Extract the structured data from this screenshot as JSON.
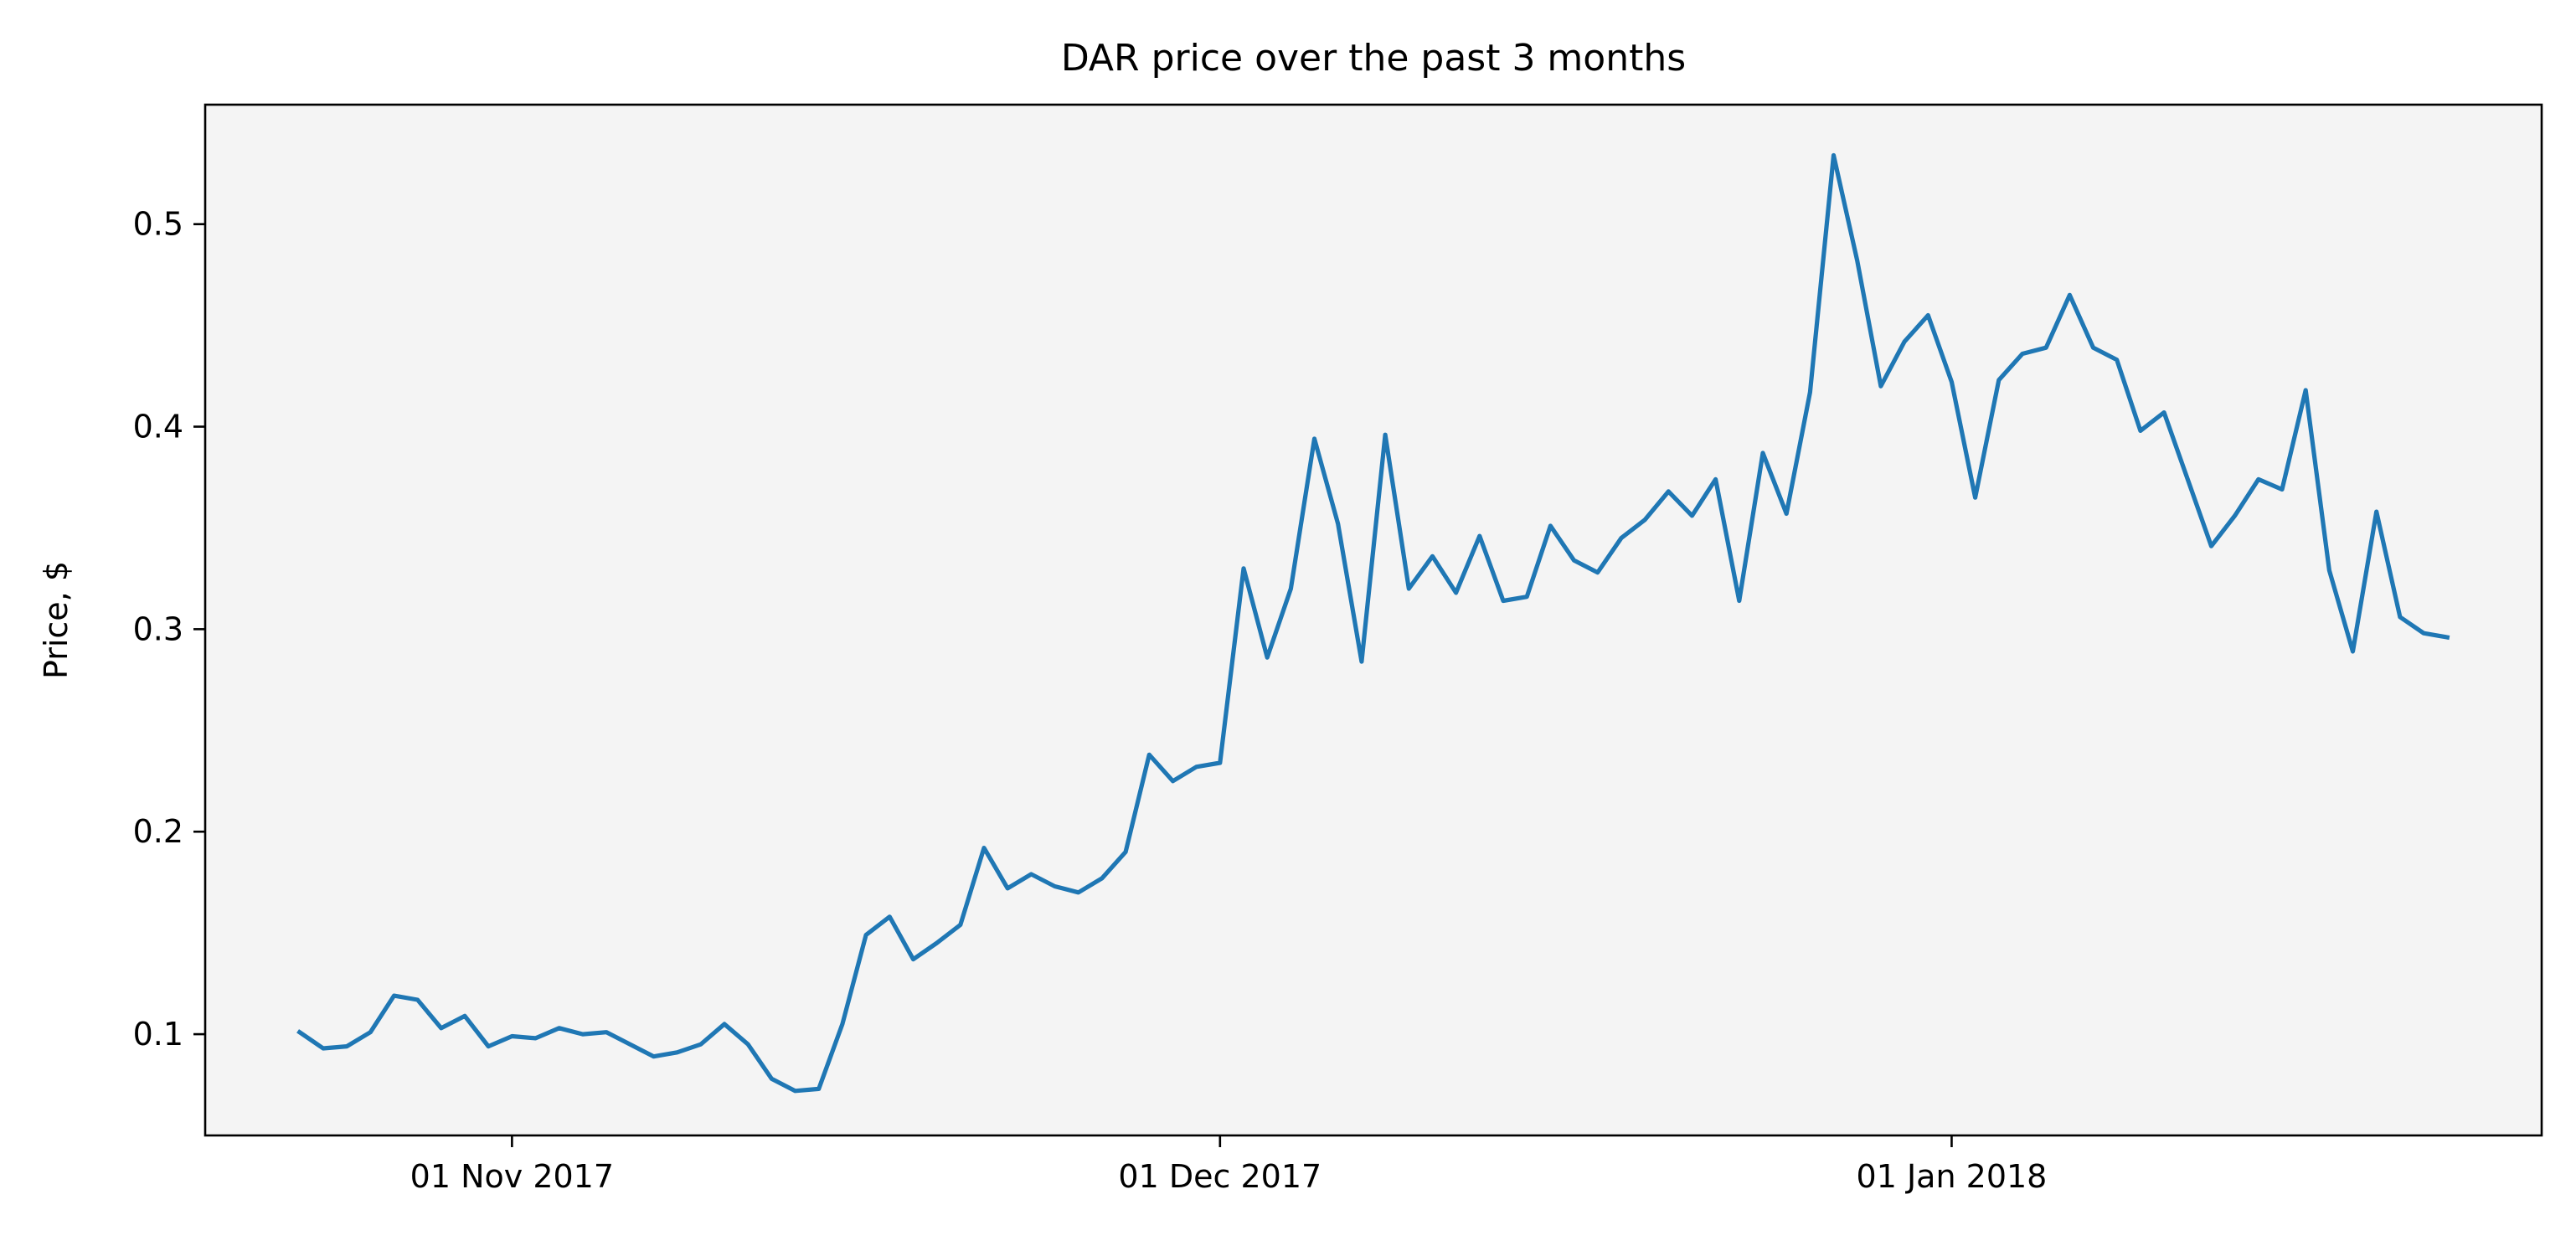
{
  "chart_data": {
    "type": "line",
    "title": "DAR price over the past 3 months",
    "xlabel": "",
    "ylabel": "Price, $",
    "x_start": "2017-10-19",
    "x_end": "2018-01-26",
    "x_ticks": [
      {
        "label": "01 Nov 2017",
        "date": "2017-11-01"
      },
      {
        "label": "01 Dec 2017",
        "date": "2017-12-01"
      },
      {
        "label": "01 Jan 2018",
        "date": "2018-01-01"
      }
    ],
    "y_ticks": [
      {
        "label": "0.1",
        "value": 0.1
      },
      {
        "label": "0.2",
        "value": 0.2
      },
      {
        "label": "0.3",
        "value": 0.3
      },
      {
        "label": "0.4",
        "value": 0.4
      },
      {
        "label": "0.5",
        "value": 0.5
      }
    ],
    "ylim": [
      0.05,
      0.559
    ],
    "grid": false,
    "plot_background": "#f4f4f4",
    "line_color": "#1f77b4",
    "series": [
      {
        "x": [
          "2017-10-23",
          "2017-10-24",
          "2017-10-25",
          "2017-10-26",
          "2017-10-27",
          "2017-10-28",
          "2017-10-29",
          "2017-10-30",
          "2017-10-31",
          "2017-11-01",
          "2017-11-02",
          "2017-11-03",
          "2017-11-04",
          "2017-11-05",
          "2017-11-06",
          "2017-11-07",
          "2017-11-08",
          "2017-11-09",
          "2017-11-10",
          "2017-11-11",
          "2017-11-12",
          "2017-11-13",
          "2017-11-14",
          "2017-11-15",
          "2017-11-16",
          "2017-11-17",
          "2017-11-18",
          "2017-11-19",
          "2017-11-20",
          "2017-11-21",
          "2017-11-22",
          "2017-11-23",
          "2017-11-24",
          "2017-11-25",
          "2017-11-26",
          "2017-11-27",
          "2017-11-28",
          "2017-11-29",
          "2017-11-30",
          "2017-12-01",
          "2017-12-02",
          "2017-12-03",
          "2017-12-04",
          "2017-12-05",
          "2017-12-06",
          "2017-12-07",
          "2017-12-08",
          "2017-12-09",
          "2017-12-10",
          "2017-12-11",
          "2017-12-12",
          "2017-12-13",
          "2017-12-14",
          "2017-12-15",
          "2017-12-16",
          "2017-12-17",
          "2017-12-18",
          "2017-12-19",
          "2017-12-20",
          "2017-12-21",
          "2017-12-22",
          "2017-12-23",
          "2017-12-24",
          "2017-12-25",
          "2017-12-26",
          "2017-12-27",
          "2017-12-28",
          "2017-12-29",
          "2017-12-30",
          "2017-12-31",
          "2018-01-01",
          "2018-01-02",
          "2018-01-03",
          "2018-01-04",
          "2018-01-05",
          "2018-01-06",
          "2018-01-07",
          "2018-01-08",
          "2018-01-09",
          "2018-01-10",
          "2018-01-11",
          "2018-01-12",
          "2018-01-13",
          "2018-01-14",
          "2018-01-15",
          "2018-01-16",
          "2018-01-17",
          "2018-01-18",
          "2018-01-19",
          "2018-01-20",
          "2018-01-21",
          "2018-01-22"
        ],
        "y": [
          0.101,
          0.093,
          0.094,
          0.101,
          0.119,
          0.117,
          0.103,
          0.109,
          0.094,
          0.099,
          0.098,
          0.103,
          0.1,
          0.101,
          0.095,
          0.089,
          0.091,
          0.095,
          0.105,
          0.095,
          0.078,
          0.072,
          0.073,
          0.105,
          0.149,
          0.158,
          0.137,
          0.145,
          0.154,
          0.192,
          0.172,
          0.179,
          0.173,
          0.17,
          0.177,
          0.19,
          0.238,
          0.225,
          0.232,
          0.234,
          0.33,
          0.286,
          0.32,
          0.394,
          0.352,
          0.284,
          0.396,
          0.32,
          0.336,
          0.318,
          0.346,
          0.314,
          0.316,
          0.351,
          0.334,
          0.328,
          0.345,
          0.354,
          0.368,
          0.356,
          0.374,
          0.314,
          0.387,
          0.357,
          0.417,
          0.534,
          0.482,
          0.42,
          0.442,
          0.455,
          0.422,
          0.365,
          0.423,
          0.436,
          0.439,
          0.465,
          0.439,
          0.433,
          0.398,
          0.407,
          0.374,
          0.341,
          0.356,
          0.374,
          0.369,
          0.418,
          0.329,
          0.289,
          0.358,
          0.306,
          0.298,
          0.296
        ]
      }
    ]
  }
}
